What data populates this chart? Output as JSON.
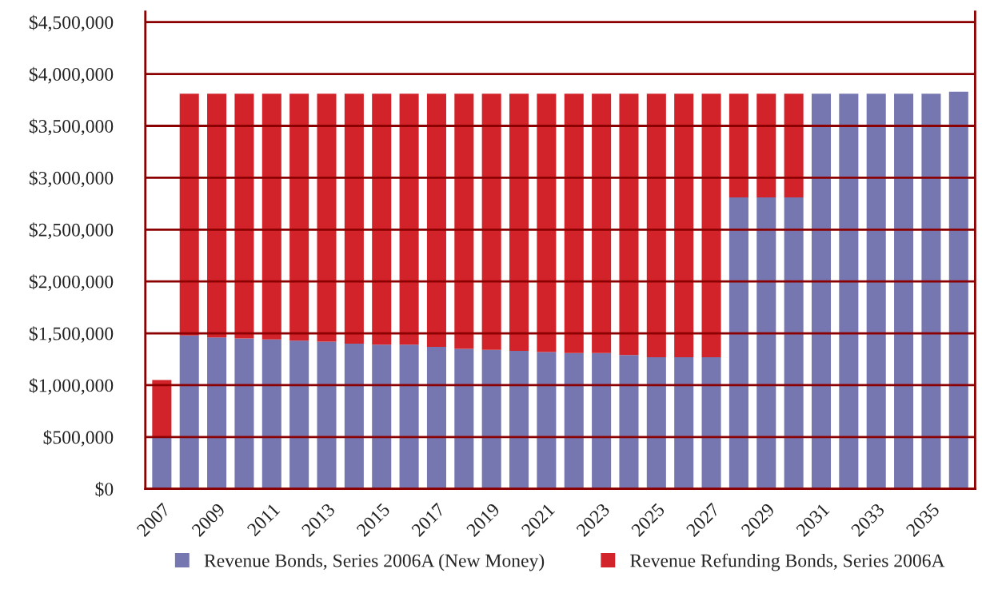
{
  "chart_data": {
    "type": "bar",
    "stacked": true,
    "categories": [
      "2007",
      null,
      "2009",
      null,
      "2011",
      null,
      "2013",
      null,
      "2015",
      null,
      "2017",
      null,
      "2019",
      null,
      "2021",
      null,
      "2023",
      null,
      "2025",
      null,
      "2027",
      null,
      "2029",
      null,
      "2031",
      null,
      "2033",
      null,
      "2035",
      null
    ],
    "series": [
      {
        "name": "Revenue Bonds, Series 2006A (New Money)",
        "color": "#7677b0",
        "values": [
          500000,
          1480000,
          1460000,
          1450000,
          1440000,
          1430000,
          1420000,
          1400000,
          1390000,
          1390000,
          1370000,
          1350000,
          1340000,
          1330000,
          1320000,
          1310000,
          1310000,
          1290000,
          1270000,
          1270000,
          1270000,
          2810000,
          2810000,
          2810000,
          3810000,
          3810000,
          3810000,
          3810000,
          3810000,
          3830000
        ]
      },
      {
        "name": "Revenue Refunding Bonds, Series 2006A",
        "color": "#d2232a",
        "values": [
          550000,
          2330000,
          2350000,
          2360000,
          2370000,
          2380000,
          2390000,
          2410000,
          2420000,
          2420000,
          2440000,
          2460000,
          2470000,
          2480000,
          2490000,
          2500000,
          2500000,
          2520000,
          2540000,
          2540000,
          2540000,
          1000000,
          1000000,
          1000000,
          0,
          0,
          0,
          0,
          0,
          0
        ]
      }
    ],
    "ylim": [
      0,
      4600000
    ],
    "yticks": [
      {
        "value": 0,
        "label": "$0"
      },
      {
        "value": 500000,
        "label": "$500,000"
      },
      {
        "value": 1000000,
        "label": "$1,000,000"
      },
      {
        "value": 1500000,
        "label": "$1,500,000"
      },
      {
        "value": 2000000,
        "label": "$2,000,000"
      },
      {
        "value": 2500000,
        "label": "$2,500,000"
      },
      {
        "value": 3000000,
        "label": "$3,000,000"
      },
      {
        "value": 3500000,
        "label": "$3,500,000"
      },
      {
        "value": 4000000,
        "label": "$4,000,000"
      },
      {
        "value": 4500000,
        "label": "$4,500,000"
      }
    ],
    "grid": "y",
    "legend": "bottom"
  }
}
